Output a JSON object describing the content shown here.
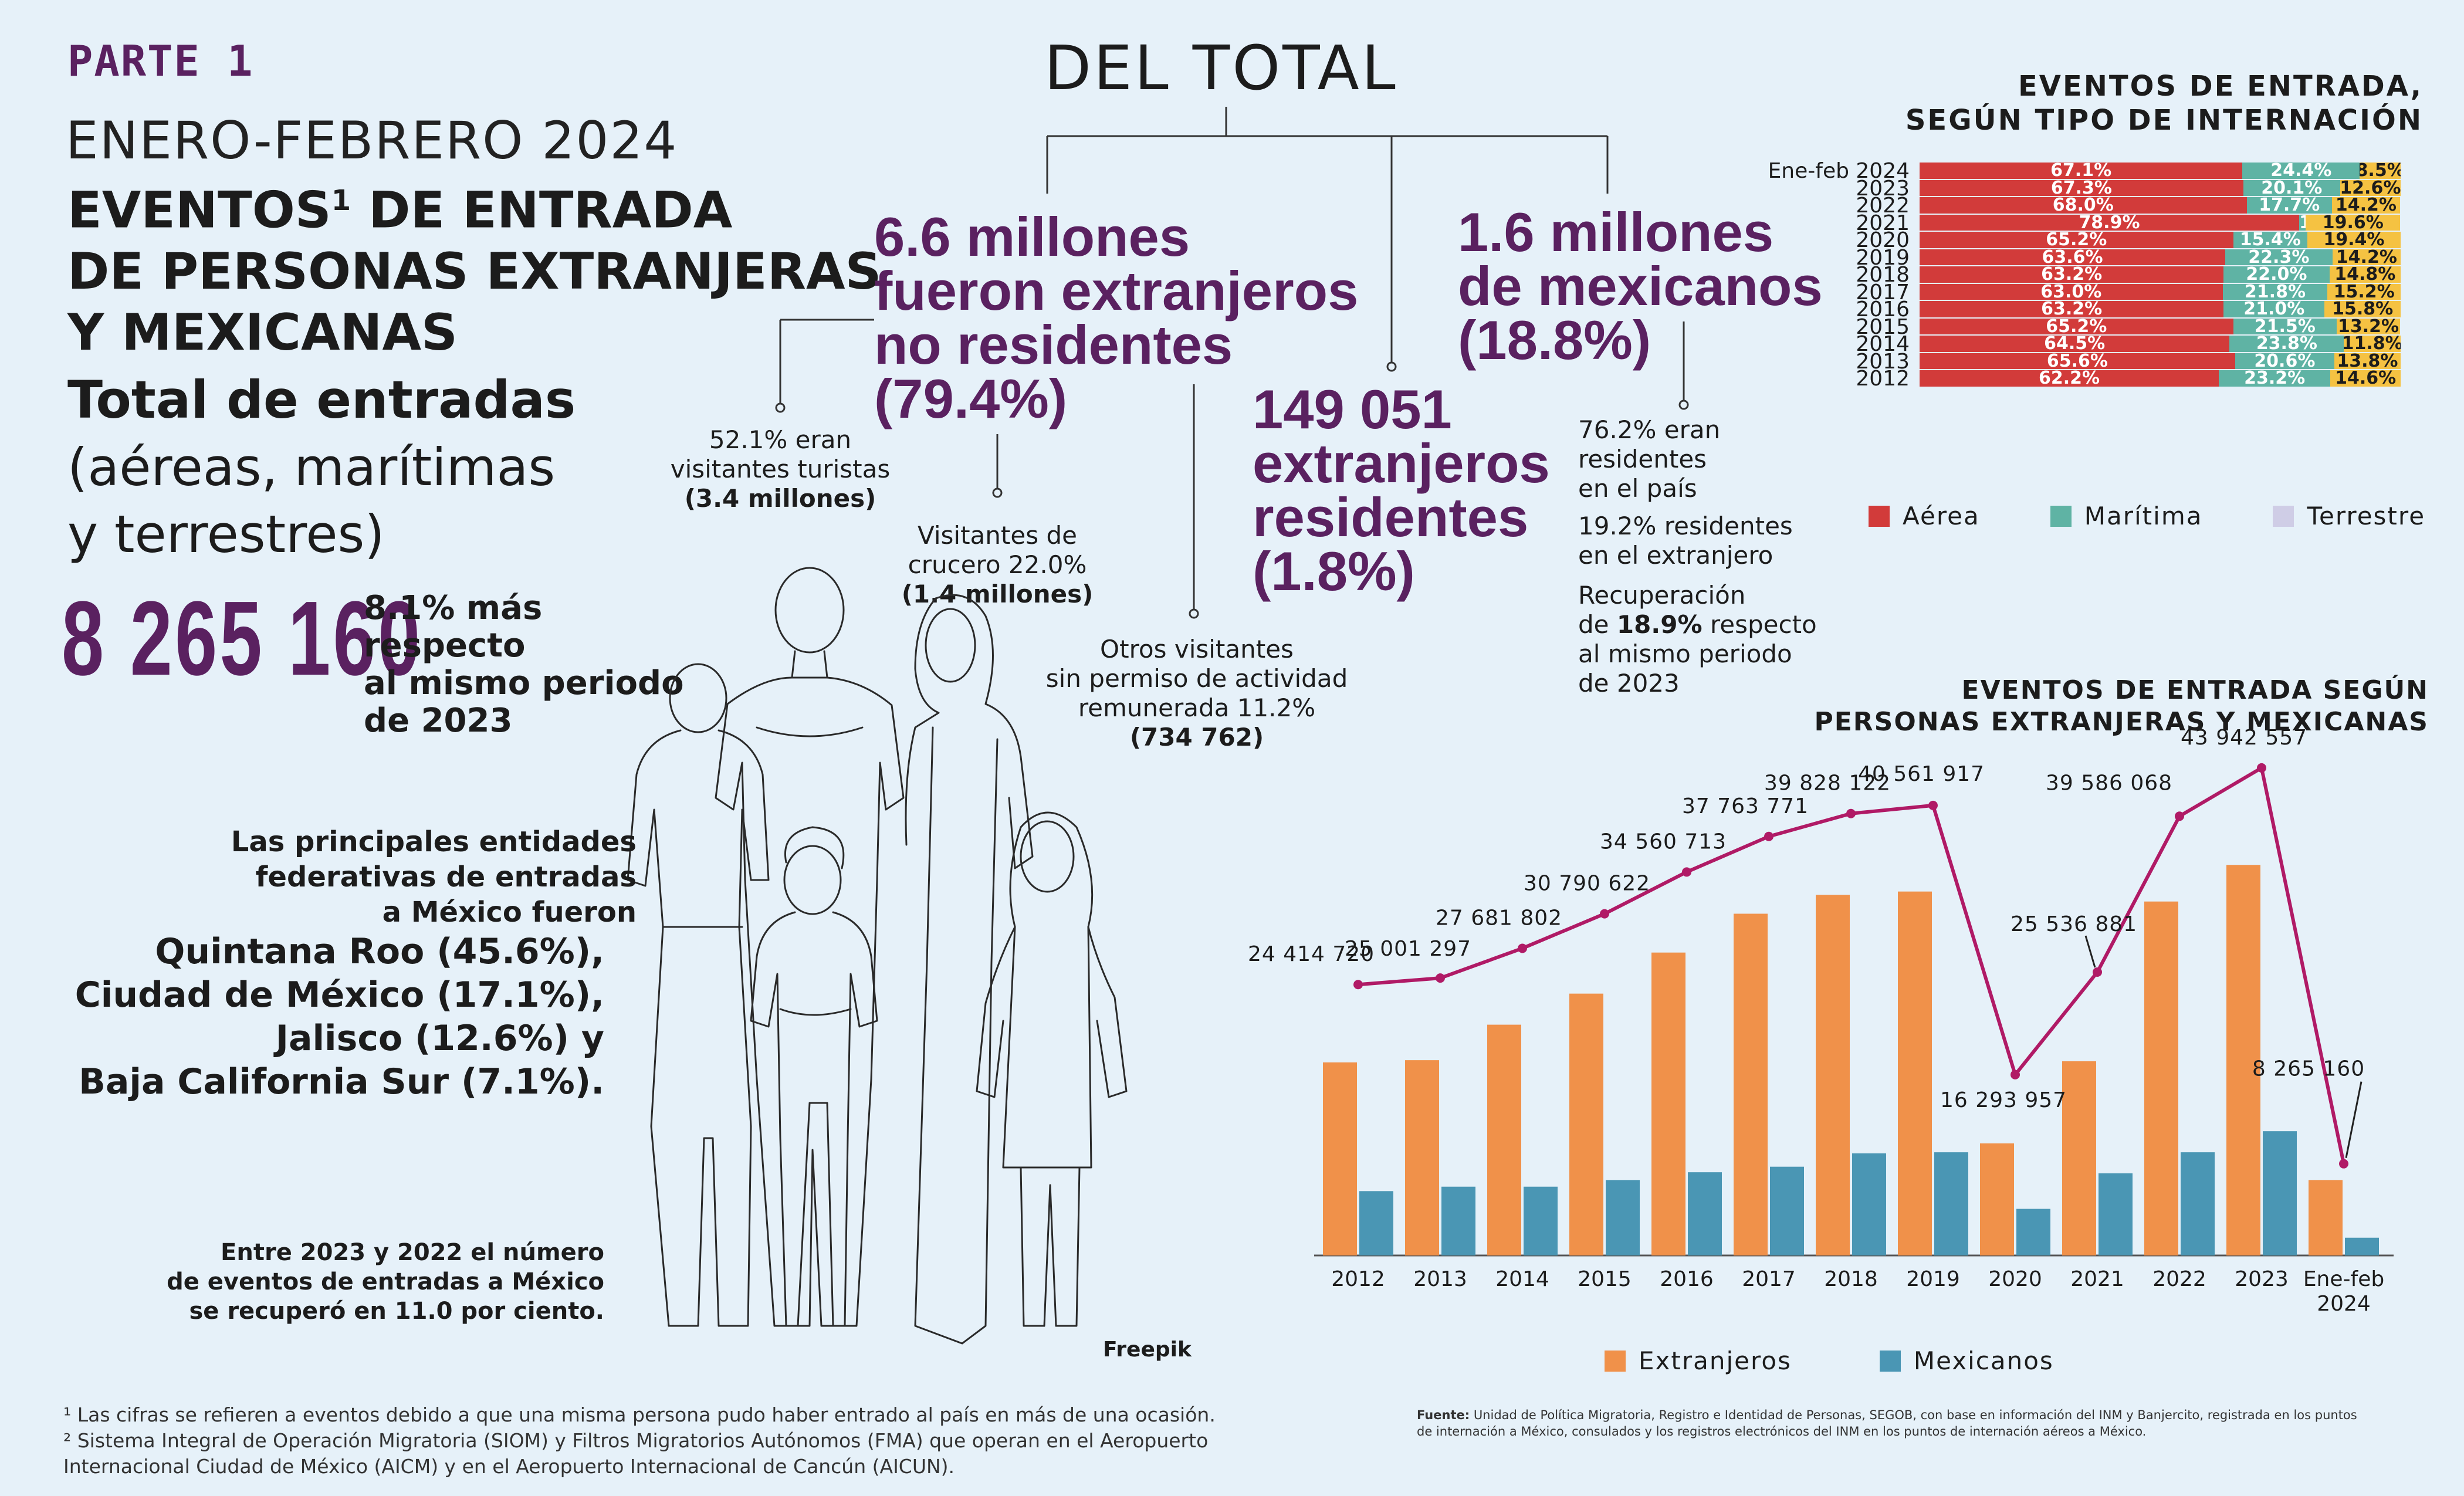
{
  "header": {
    "parte": "PARTE 1",
    "periodo": "ENERO-FEBRERO 2024",
    "title_line1_pre": "EVENTOS",
    "title_sup": "1",
    "title_line1_post": " DE ENTRADA",
    "title_line2": "DE PERSONAS EXTRANJERAS",
    "title_line3": "Y MEXICANAS"
  },
  "total": {
    "title": "Total de entradas",
    "sub1": "(aéreas, marítimas",
    "sub2": "y terrestres)",
    "number": "8 265 160",
    "change_line1": "8.1% más respecto",
    "change_line2": "al mismo periodo",
    "change_line3": "de 2023"
  },
  "breakdown": {
    "del_total": "DEL TOTAL",
    "no_res_1": "6.6 millones",
    "no_res_2": "fueron extranjeros",
    "no_res_3": "no residentes",
    "no_res_4": "(79.4%)",
    "turistas_1": "52.1% eran",
    "turistas_2": "visitantes turistas",
    "turistas_3": "(3.4 millones)",
    "crucero_1": "Visitantes de",
    "crucero_2": "crucero 22.0%",
    "crucero_3": "(1.4 millones)",
    "otros_1": "Otros visitantes",
    "otros_2": "sin permiso de actividad",
    "otros_3": "remunerada 11.2%",
    "otros_4": "(734 762)",
    "res_1": "149 051",
    "res_2": "extranjeros",
    "res_3": "residentes",
    "res_4": "(1.8%)",
    "mex_1": "1.6 millones",
    "mex_2": "de mexicanos",
    "mex_3": "(18.8%)",
    "mex_pais_1": "76.2% eran",
    "mex_pais_2": "residentes",
    "mex_pais_3": "en el país",
    "mex_ext_1": "19.2% residentes",
    "mex_ext_2": "en el extranjero",
    "recup_1": "Recuperación",
    "recup_2_pre": "de ",
    "recup_2_b": "18.9%",
    "recup_2_post": " respecto",
    "recup_3": "al mismo periodo",
    "recup_4": "de 2023"
  },
  "entidades": {
    "intro_1": "Las principales entidades",
    "intro_2": "federativas de entradas",
    "intro_3": "a México fueron",
    "list_1": "Quintana Roo (45.6%),",
    "list_2": "Ciudad de México (17.1%),",
    "list_3": "Jalisco (12.6%) y",
    "list_4": "Baja California Sur (7.1%).",
    "recup_1": "Entre 2023 y 2022 el número",
    "recup_2": "de eventos de entradas a México",
    "recup_3": "se recuperó en 11.0 por ciento."
  },
  "credit": "Freepik",
  "footnotes": {
    "n1": "¹ Las cifras se refieren a eventos debido a que una misma persona pudo haber entrado al país en más de una ocasión.",
    "n2": "² Sistema Integral de Operación Migratoria (SIOM) y Filtros Migratorios Autónomos (FMA) que operan en el Aeropuerto Internacional Ciudad de México (AICM) y en el Aeropuerto Internacional de Cancún (AICUN).",
    "fuente_label": "Fuente:",
    "fuente": "Unidad de Política Migratoria, Registro e Identidad de Personas, SEGOB, con base en información del INM y Banjercito, registrada en los puntos de internación a México, consulados y los registros electrónicos del INM en los puntos de internación aéreos a México."
  },
  "colors": {
    "purple": "#5a2160",
    "aerea": "#d23b3a",
    "maritima": "#5fb3a4",
    "terrestre": "#f5c242",
    "terrestre_legend": "#cfcde6",
    "extranjeros": "#f0914a",
    "mexicanos": "#4a96b4",
    "total_line": "#b01a66"
  },
  "chart_data": [
    {
      "type": "bar",
      "stacked": true,
      "orientation": "horizontal",
      "title_1": "EVENTOS DE ENTRADA,",
      "title_2": "SEGÚN TIPO DE INTERNACIÓN",
      "categories": [
        "Ene-feb 2024",
        "2023",
        "2022",
        "2021",
        "2020",
        "2019",
        "2018",
        "2017",
        "2016",
        "2015",
        "2014",
        "2013",
        "2012"
      ],
      "series": [
        {
          "name": "Aérea",
          "values": [
            67.1,
            67.3,
            68.0,
            78.9,
            65.2,
            63.6,
            63.2,
            63.0,
            63.2,
            65.2,
            64.5,
            65.6,
            62.2
          ]
        },
        {
          "name": "Marítima",
          "values": [
            24.4,
            20.1,
            17.7,
            1.4,
            15.4,
            22.3,
            22.0,
            21.8,
            21.0,
            21.5,
            23.8,
            20.6,
            23.2
          ]
        },
        {
          "name": "Terrestre",
          "values": [
            8.5,
            12.6,
            14.2,
            19.6,
            19.4,
            14.2,
            14.8,
            15.2,
            15.8,
            13.2,
            11.8,
            13.8,
            14.6
          ]
        }
      ],
      "labels": {
        "aerea": [
          "67.1%",
          "67.3%",
          "68.0%",
          "78.9%",
          "65.2%",
          "63.6%",
          "63.2%",
          "63.0%",
          "63.2%",
          "65.2%",
          "64.5%",
          "65.6%",
          "62.2%"
        ],
        "maritima": [
          "24.4%",
          "20.1%",
          "17.7%",
          "1.4%",
          "15.4%",
          "22.3%",
          "22.0%",
          "21.8%",
          "21.0%",
          "21.5%",
          "23.8%",
          "20.6%",
          "23.2%"
        ],
        "terrestre": [
          "8.5%",
          "12.6%",
          "14.2%",
          "19.6%",
          "19.4%",
          "14.2%",
          "14.8%",
          "15.2%",
          "15.8%",
          "13.2%",
          "11.8%",
          "13.8%",
          "14.6%"
        ]
      },
      "legend": [
        "Aérea",
        "Marítima",
        "Terrestre"
      ],
      "legend_position": "bottom"
    },
    {
      "type": "bar",
      "title_1": "EVENTOS DE ENTRADA SEGÚN",
      "title_2": "PERSONAS EXTRANJERAS Y MEXICANAS",
      "categories": [
        "2012",
        "2013",
        "2014",
        "2015",
        "2016",
        "2017",
        "2018",
        "2019",
        "2020",
        "2021",
        "2022",
        "2023",
        "Ene-feb 2024"
      ],
      "series": [
        {
          "name": "Extranjeros",
          "values": [
            17400000,
            17600000,
            20800000,
            23600000,
            27300000,
            30800000,
            32500000,
            32800000,
            10100000,
            17500000,
            31900000,
            35200000,
            6800000
          ]
        },
        {
          "name": "Mexicanos",
          "values": [
            5800000,
            6200000,
            6200000,
            6800000,
            7500000,
            8000000,
            9200000,
            9300000,
            4200000,
            7400000,
            9300000,
            11200000,
            1600000
          ]
        }
      ],
      "total_line": {
        "values": [
          24414720,
          25001297,
          27681802,
          30790622,
          34560713,
          37763771,
          39828122,
          40561917,
          16293957,
          25536881,
          39586068,
          43942557,
          8265160
        ],
        "labels": [
          "24 414 720",
          "25 001 297",
          "27 681 802",
          "30 790 622",
          "34 560 713",
          "37 763 771",
          "39 828 122",
          "40 561 917",
          "16 293 957",
          "25 536 881",
          "39 586 068",
          "43 942 557",
          "8 265 160"
        ]
      },
      "x_labels": [
        "2012",
        "2013",
        "2014",
        "2015",
        "2016",
        "2017",
        "2018",
        "2019",
        "2020",
        "2021",
        "2022",
        "2023",
        "Ene-feb"
      ],
      "x_label_last_line2": "2024",
      "legend": [
        "Extranjeros",
        "Mexicanos"
      ],
      "legend_position": "bottom",
      "ylim": [
        0,
        46000000
      ]
    }
  ]
}
